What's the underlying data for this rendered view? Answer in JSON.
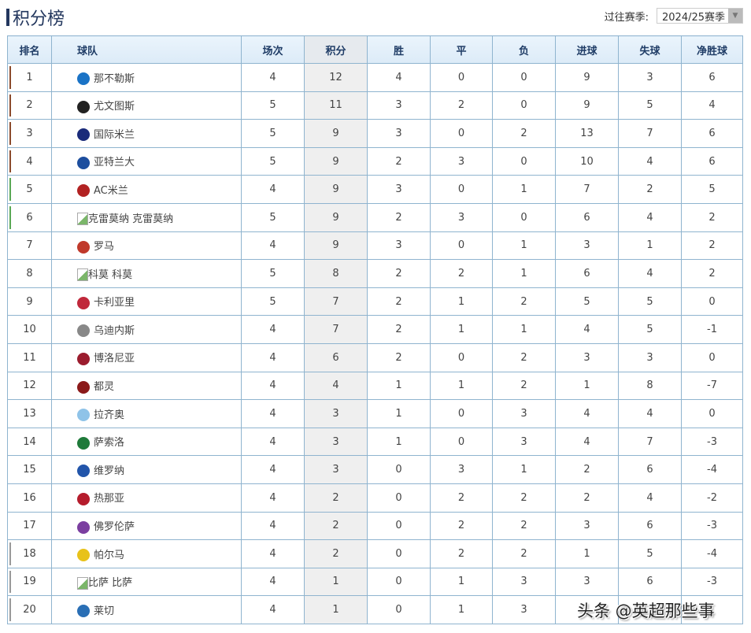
{
  "title": "积分榜",
  "season": {
    "label": "过往赛季:",
    "value": "2024/25赛季"
  },
  "headers": [
    "排名",
    "球队",
    "场次",
    "积分",
    "胜",
    "平",
    "负",
    "进球",
    "失球",
    "净胜球"
  ],
  "zone_colors": {
    "champions": "#8b4a2b",
    "europa": "#5aa855",
    "relegation": "#999999"
  },
  "rows": [
    {
      "rank": "1",
      "team": "那不勒斯",
      "logo": "#1a73c6",
      "zone": "champions",
      "p": "4",
      "pts": "12",
      "w": "4",
      "d": "0",
      "l": "0",
      "gf": "9",
      "ga": "3",
      "gd": "6"
    },
    {
      "rank": "2",
      "team": "尤文图斯",
      "logo": "#222222",
      "zone": "champions",
      "p": "5",
      "pts": "11",
      "w": "3",
      "d": "2",
      "l": "0",
      "gf": "9",
      "ga": "5",
      "gd": "4"
    },
    {
      "rank": "3",
      "team": "国际米兰",
      "logo": "#1a2b7a",
      "zone": "champions",
      "p": "5",
      "pts": "9",
      "w": "3",
      "d": "0",
      "l": "2",
      "gf": "13",
      "ga": "7",
      "gd": "6"
    },
    {
      "rank": "4",
      "team": "亚特兰大",
      "logo": "#1d4e9e",
      "zone": "champions",
      "p": "5",
      "pts": "9",
      "w": "2",
      "d": "3",
      "l": "0",
      "gf": "10",
      "ga": "4",
      "gd": "6"
    },
    {
      "rank": "5",
      "team": "AC米兰",
      "logo": "#b22222",
      "zone": "europa",
      "p": "4",
      "pts": "9",
      "w": "3",
      "d": "0",
      "l": "1",
      "gf": "7",
      "ga": "2",
      "gd": "5"
    },
    {
      "rank": "6",
      "team": "克雷莫纳",
      "alt": "克雷莫纳",
      "zone": "europa",
      "p": "5",
      "pts": "9",
      "w": "2",
      "d": "3",
      "l": "0",
      "gf": "6",
      "ga": "4",
      "gd": "2"
    },
    {
      "rank": "7",
      "team": "罗马",
      "logo": "#c0392b",
      "p": "4",
      "pts": "9",
      "w": "3",
      "d": "0",
      "l": "1",
      "gf": "3",
      "ga": "1",
      "gd": "2"
    },
    {
      "rank": "8",
      "team": "科莫",
      "alt": "科莫",
      "p": "5",
      "pts": "8",
      "w": "2",
      "d": "2",
      "l": "1",
      "gf": "6",
      "ga": "4",
      "gd": "2"
    },
    {
      "rank": "9",
      "team": "卡利亚里",
      "logo": "#c0283b",
      "p": "5",
      "pts": "7",
      "w": "2",
      "d": "1",
      "l": "2",
      "gf": "5",
      "ga": "5",
      "gd": "0"
    },
    {
      "rank": "10",
      "team": "乌迪内斯",
      "logo": "#888888",
      "p": "4",
      "pts": "7",
      "w": "2",
      "d": "1",
      "l": "1",
      "gf": "4",
      "ga": "5",
      "gd": "-1"
    },
    {
      "rank": "11",
      "team": "博洛尼亚",
      "logo": "#9b1c2e",
      "p": "4",
      "pts": "6",
      "w": "2",
      "d": "0",
      "l": "2",
      "gf": "3",
      "ga": "3",
      "gd": "0"
    },
    {
      "rank": "12",
      "team": "都灵",
      "logo": "#8b1a1a",
      "p": "4",
      "pts": "4",
      "w": "1",
      "d": "1",
      "l": "2",
      "gf": "1",
      "ga": "8",
      "gd": "-7"
    },
    {
      "rank": "13",
      "team": "拉齐奥",
      "logo": "#8fc3e8",
      "p": "4",
      "pts": "3",
      "w": "1",
      "d": "0",
      "l": "3",
      "gf": "4",
      "ga": "4",
      "gd": "0"
    },
    {
      "rank": "14",
      "team": "萨索洛",
      "logo": "#1f7a3a",
      "p": "4",
      "pts": "3",
      "w": "1",
      "d": "0",
      "l": "3",
      "gf": "4",
      "ga": "7",
      "gd": "-3"
    },
    {
      "rank": "15",
      "team": "维罗纳",
      "logo": "#2255aa",
      "p": "4",
      "pts": "3",
      "w": "0",
      "d": "3",
      "l": "1",
      "gf": "2",
      "ga": "6",
      "gd": "-4"
    },
    {
      "rank": "16",
      "team": "热那亚",
      "logo": "#b51c2c",
      "p": "4",
      "pts": "2",
      "w": "0",
      "d": "2",
      "l": "2",
      "gf": "2",
      "ga": "4",
      "gd": "-2"
    },
    {
      "rank": "17",
      "team": "佛罗伦萨",
      "logo": "#7b3fa0",
      "p": "4",
      "pts": "2",
      "w": "0",
      "d": "2",
      "l": "2",
      "gf": "3",
      "ga": "6",
      "gd": "-3"
    },
    {
      "rank": "18",
      "team": "帕尔马",
      "logo": "#e8c21a",
      "zone": "relegation",
      "p": "4",
      "pts": "2",
      "w": "0",
      "d": "2",
      "l": "2",
      "gf": "1",
      "ga": "5",
      "gd": "-4"
    },
    {
      "rank": "19",
      "team": "比萨",
      "alt": "比萨",
      "zone": "relegation",
      "p": "4",
      "pts": "1",
      "w": "0",
      "d": "1",
      "l": "3",
      "gf": "3",
      "ga": "6",
      "gd": "-3"
    },
    {
      "rank": "20",
      "team": "莱切",
      "logo": "#2a6fb5",
      "zone": "relegation",
      "p": "4",
      "pts": "1",
      "w": "0",
      "d": "1",
      "l": "3",
      "gf": "",
      "ga": "",
      "gd": ""
    }
  ],
  "watermark": "头条 @英超那些事"
}
